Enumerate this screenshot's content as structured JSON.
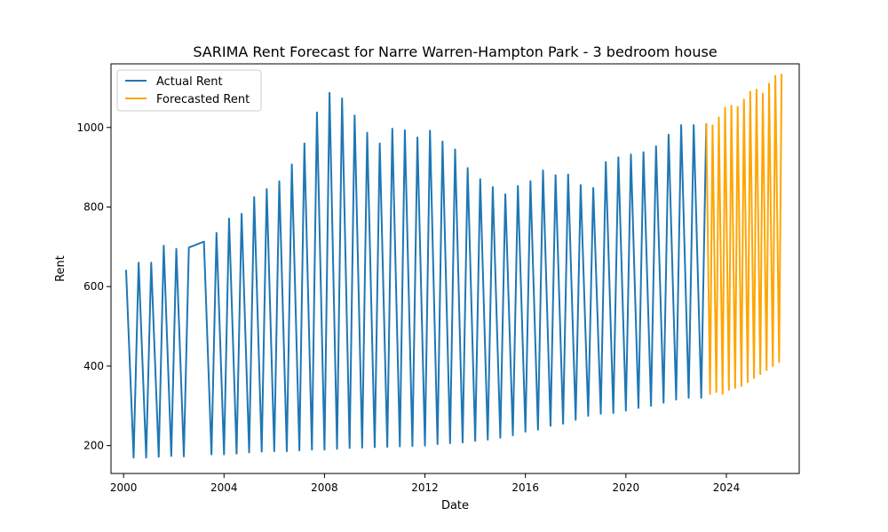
{
  "chart_data": {
    "type": "line",
    "title": "SARIMA Rent Forecast for Narre Warren-Hampton Park - 3 bedroom house",
    "xlabel": "Date",
    "ylabel": "Rent",
    "xlim": [
      1999.5,
      2026.9
    ],
    "ylim": [
      130,
      1160
    ],
    "x_ticks": [
      2000,
      2004,
      2008,
      2012,
      2016,
      2020,
      2024
    ],
    "y_ticks": [
      200,
      400,
      600,
      800,
      1000
    ],
    "grid": false,
    "legend": "top-left",
    "series": [
      {
        "name": "Actual Rent",
        "color": "#1f77b4",
        "x": [
          2000.1,
          2000.4,
          2000.6,
          2000.9,
          2001.1,
          2001.4,
          2001.6,
          2001.9,
          2002.1,
          2002.4,
          2002.6,
          2003.2,
          2003.5,
          2003.7,
          2004.0,
          2004.2,
          2004.5,
          2004.7,
          2005.0,
          2005.2,
          2005.5,
          2005.7,
          2006.0,
          2006.2,
          2006.5,
          2006.7,
          2007.0,
          2007.2,
          2007.5,
          2007.7,
          2008.0,
          2008.2,
          2008.5,
          2008.7,
          2009.0,
          2009.2,
          2009.5,
          2009.7,
          2010.0,
          2010.2,
          2010.5,
          2010.7,
          2011.0,
          2011.2,
          2011.5,
          2011.7,
          2012.0,
          2012.2,
          2012.5,
          2012.7,
          2013.0,
          2013.2,
          2013.5,
          2013.7,
          2014.0,
          2014.2,
          2014.5,
          2014.7,
          2015.0,
          2015.2,
          2015.5,
          2015.7,
          2016.0,
          2016.2,
          2016.5,
          2016.7,
          2017.0,
          2017.2,
          2017.5,
          2017.7,
          2018.0,
          2018.2,
          2018.5,
          2018.7,
          2019.0,
          2019.2,
          2019.5,
          2019.7,
          2020.0,
          2020.2,
          2020.5,
          2020.7,
          2021.0,
          2021.2,
          2021.5,
          2021.7,
          2022.0,
          2022.2,
          2022.5,
          2022.7,
          2023.0,
          2023.2
        ],
        "y": [
          642,
          170,
          660,
          170,
          660,
          172,
          703,
          174,
          695,
          173,
          698,
          713,
          178,
          735,
          178,
          771,
          180,
          783,
          183,
          825,
          185,
          845,
          186,
          865,
          186,
          907,
          188,
          960,
          190,
          1038,
          190,
          1087,
          192,
          1073,
          194,
          1030,
          195,
          987,
          196,
          960,
          197,
          997,
          198,
          993,
          199,
          975,
          200,
          992,
          204,
          965,
          206,
          945,
          208,
          898,
          212,
          870,
          215,
          850,
          220,
          832,
          226,
          853,
          235,
          865,
          240,
          892,
          250,
          880,
          255,
          882,
          265,
          855,
          275,
          848,
          280,
          913,
          282,
          925,
          288,
          932,
          295,
          938,
          300,
          953,
          308,
          982,
          316,
          1006,
          320,
          1006,
          320,
          1010
        ]
      },
      {
        "name": "Forecasted Rent",
        "color": "#ffa500",
        "x": [
          2023.2,
          2023.35,
          2023.45,
          2023.6,
          2023.7,
          2023.85,
          2023.95,
          2024.1,
          2024.2,
          2024.35,
          2024.45,
          2024.6,
          2024.7,
          2024.85,
          2024.95,
          2025.1,
          2025.2,
          2025.35,
          2025.45,
          2025.6,
          2025.7,
          2025.85,
          2025.95,
          2026.1,
          2026.2
        ],
        "y": [
          1010,
          330,
          1005,
          335,
          1025,
          330,
          1050,
          340,
          1055,
          345,
          1052,
          350,
          1070,
          360,
          1090,
          370,
          1095,
          380,
          1085,
          390,
          1110,
          400,
          1130,
          410,
          1135
        ]
      }
    ]
  }
}
